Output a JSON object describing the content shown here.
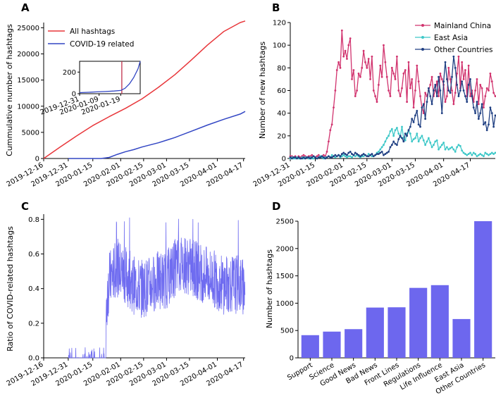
{
  "colors": {
    "all_hashtags": "#e8363a",
    "covid": "#3246c4",
    "mainland": "#d1336e",
    "east_asia": "#3ec8c8",
    "other": "#1f3f82",
    "ratio": "#6f6cf0",
    "bar": "#6d67ee"
  },
  "chart_data": [
    {
      "panel": "A",
      "type": "line",
      "title": "",
      "ylabel": "Cummulative number of hashtags",
      "xlabel": "",
      "ylim": [
        0,
        26000
      ],
      "yticks": [
        "0",
        "5000",
        "10000",
        "15000",
        "20000",
        "25000"
      ],
      "xticks": [
        "2019-12-16",
        "2019-12-31",
        "2020-01-15",
        "2020-02-01",
        "2020-02-15",
        "2020-03-01",
        "2020-03-15",
        "2020-04-01",
        "2020-04-17"
      ],
      "legend": [
        "All hashtags",
        "COVID-19 related"
      ],
      "legend_position": "top-left",
      "series": [
        {
          "name": "All hashtags",
          "x": [
            0,
            10,
            20,
            30,
            40,
            50,
            60,
            70,
            80,
            90,
            100,
            110,
            120,
            123
          ],
          "values": [
            0,
            2200,
            4300,
            6300,
            8000,
            9600,
            11400,
            13600,
            16000,
            18800,
            21700,
            24300,
            26000,
            26300
          ]
        },
        {
          "name": "COVID-19 related",
          "x": [
            15,
            25,
            35,
            40,
            45,
            50,
            55,
            60,
            65,
            70,
            75,
            80,
            90,
            100,
            110,
            120,
            123
          ],
          "values": [
            0,
            0,
            0,
            200,
            800,
            1300,
            1700,
            2200,
            2600,
            3000,
            3500,
            4000,
            5200,
            6400,
            7500,
            8500,
            9000
          ]
        }
      ],
      "inset": {
        "yticks": [
          "0",
          "200"
        ],
        "xticks": [
          "2019-12-31",
          "2020-01-09",
          "2020-01-19"
        ],
        "ylim": [
          0,
          300
        ],
        "x": [
          0,
          4,
          8,
          12,
          16,
          19,
          21,
          23,
          25,
          27,
          28
        ],
        "values": [
          10,
          13,
          17,
          20,
          25,
          30,
          50,
          90,
          150,
          230,
          300
        ],
        "marker_x": 19.5
      }
    },
    {
      "panel": "B",
      "type": "line",
      "title": "",
      "ylabel": "Number of new hashtags",
      "xlabel": "",
      "ylim": [
        0,
        120
      ],
      "yticks": [
        "0",
        "20",
        "40",
        "60",
        "80",
        "100",
        "120"
      ],
      "xticks": [
        "2019-12-31",
        "2020-01-15",
        "2020-02-01",
        "2020-02-15",
        "2020-03-01",
        "2020-03-15",
        "2020-04-01",
        "2020-04-17"
      ],
      "legend": [
        "Mainland China",
        "East Asia",
        "Other Countries"
      ],
      "legend_position": "top-right",
      "series": [
        {
          "name": "Mainland China",
          "values": [
            2,
            2,
            1,
            2,
            1,
            2,
            1,
            2,
            3,
            2,
            1,
            2,
            2,
            3,
            2,
            1,
            2,
            3,
            2,
            2,
            3,
            2,
            6,
            15,
            25,
            30,
            45,
            60,
            78,
            85,
            80,
            113,
            90,
            95,
            88,
            100,
            106,
            70,
            78,
            55,
            60,
            75,
            72,
            80,
            95,
            85,
            80,
            88,
            70,
            90,
            60,
            55,
            50,
            65,
            82,
            72,
            100,
            85,
            72,
            60,
            55,
            80,
            75,
            70,
            90,
            60,
            55,
            62,
            75,
            78,
            50,
            85,
            62,
            70,
            45,
            60,
            82,
            68,
            55,
            45,
            40,
            58,
            55,
            60,
            65,
            72,
            55,
            60,
            68,
            55,
            75,
            70,
            65,
            50,
            55,
            80,
            70,
            60,
            48,
            58,
            75,
            90,
            62,
            85,
            70,
            78,
            55,
            82,
            55,
            60,
            50,
            60,
            70,
            48,
            65,
            62,
            45,
            55,
            62,
            60,
            75,
            68,
            58,
            55
          ]
        },
        {
          "name": "East Asia",
          "values": [
            0,
            1,
            0,
            0,
            1,
            0,
            0,
            1,
            0,
            1,
            1,
            0,
            1,
            0,
            0,
            1,
            0,
            1,
            2,
            1,
            0,
            1,
            1,
            2,
            1,
            3,
            2,
            1,
            2,
            3,
            1,
            2,
            3,
            2,
            1,
            2,
            2,
            1,
            3,
            2,
            3,
            2,
            1,
            2,
            2,
            3,
            2,
            4,
            3,
            2,
            2,
            3,
            5,
            6,
            8,
            10,
            12,
            15,
            18,
            20,
            24,
            26,
            20,
            25,
            27,
            22,
            19,
            28,
            18,
            16,
            22,
            25,
            22,
            15,
            17,
            18,
            22,
            15,
            18,
            20,
            16,
            12,
            15,
            18,
            14,
            10,
            12,
            15,
            16,
            8,
            10,
            12,
            14,
            8,
            10,
            8,
            9,
            10,
            8,
            6,
            10,
            12,
            11,
            7,
            5,
            4,
            3,
            4,
            5,
            3,
            5,
            4,
            2,
            3,
            4,
            3,
            2,
            5,
            4,
            3,
            4,
            5,
            4,
            5
          ]
        },
        {
          "name": "Other Countries",
          "values": [
            1,
            0,
            1,
            1,
            0,
            1,
            0,
            0,
            1,
            0,
            1,
            1,
            0,
            1,
            2,
            1,
            0,
            1,
            1,
            2,
            1,
            0,
            1,
            2,
            1,
            1,
            2,
            3,
            2,
            3,
            2,
            4,
            5,
            4,
            3,
            5,
            6,
            4,
            3,
            5,
            4,
            3,
            2,
            3,
            4,
            3,
            2,
            2,
            3,
            4,
            2,
            3,
            4,
            4,
            5,
            6,
            3,
            4,
            5,
            6,
            10,
            12,
            15,
            13,
            12,
            17,
            20,
            18,
            15,
            22,
            20,
            25,
            28,
            35,
            32,
            38,
            42,
            30,
            28,
            45,
            48,
            35,
            50,
            62,
            55,
            48,
            60,
            65,
            55,
            72,
            60,
            40,
            68,
            85,
            70,
            60,
            58,
            72,
            90,
            80,
            65,
            55,
            60,
            68,
            60,
            55,
            50,
            65,
            70,
            55,
            45,
            40,
            50,
            35,
            40,
            48,
            30,
            32,
            25,
            30,
            45,
            40,
            28,
            38
          ]
        }
      ]
    },
    {
      "panel": "C",
      "type": "line",
      "title": "",
      "ylabel": "Ratio of COVID-related hashtags",
      "xlabel": "",
      "ylim": [
        0,
        0.83
      ],
      "yticks": [
        "0.0",
        "0.2",
        "0.4",
        "0.6",
        "0.8"
      ],
      "xticks": [
        "2019-12-16",
        "2019-12-31",
        "2020-01-15",
        "2020-02-01",
        "2020-02-15",
        "2020-03-01",
        "2020-03-15",
        "2020-04-01",
        "2020-04-17"
      ],
      "series": [
        {
          "name": "Ratio",
          "note": "hourly ratio approx., day index from 2019-12-16",
          "start_day": 15,
          "end_day": 123,
          "levels": [
            [
              15,
              0.02
            ],
            [
              30,
              0.02
            ],
            [
              35,
              0.05
            ],
            [
              40,
              0.45
            ],
            [
              45,
              0.52
            ],
            [
              50,
              0.48
            ],
            [
              55,
              0.42
            ],
            [
              60,
              0.4
            ],
            [
              65,
              0.42
            ],
            [
              70,
              0.45
            ],
            [
              75,
              0.45
            ],
            [
              80,
              0.52
            ],
            [
              85,
              0.55
            ],
            [
              90,
              0.52
            ],
            [
              95,
              0.5
            ],
            [
              100,
              0.47
            ],
            [
              105,
              0.45
            ],
            [
              110,
              0.42
            ],
            [
              115,
              0.43
            ],
            [
              120,
              0.42
            ],
            [
              123,
              0.4
            ]
          ],
          "peak": 0.81
        }
      ]
    },
    {
      "panel": "D",
      "type": "bar",
      "title": "",
      "ylabel": "Number of hashtags",
      "xlabel": "",
      "ylim": [
        0,
        2500
      ],
      "yticks": [
        "0",
        "500",
        "1000",
        "1500",
        "2000",
        "2500"
      ],
      "categories": [
        "Support",
        "Science",
        "Good News",
        "Bad News",
        "Front Lines",
        "Regulations",
        "Life Influence",
        "East Asia",
        "Other Countries"
      ],
      "values": [
        415,
        480,
        525,
        920,
        925,
        1280,
        1330,
        710,
        2500
      ]
    }
  ]
}
